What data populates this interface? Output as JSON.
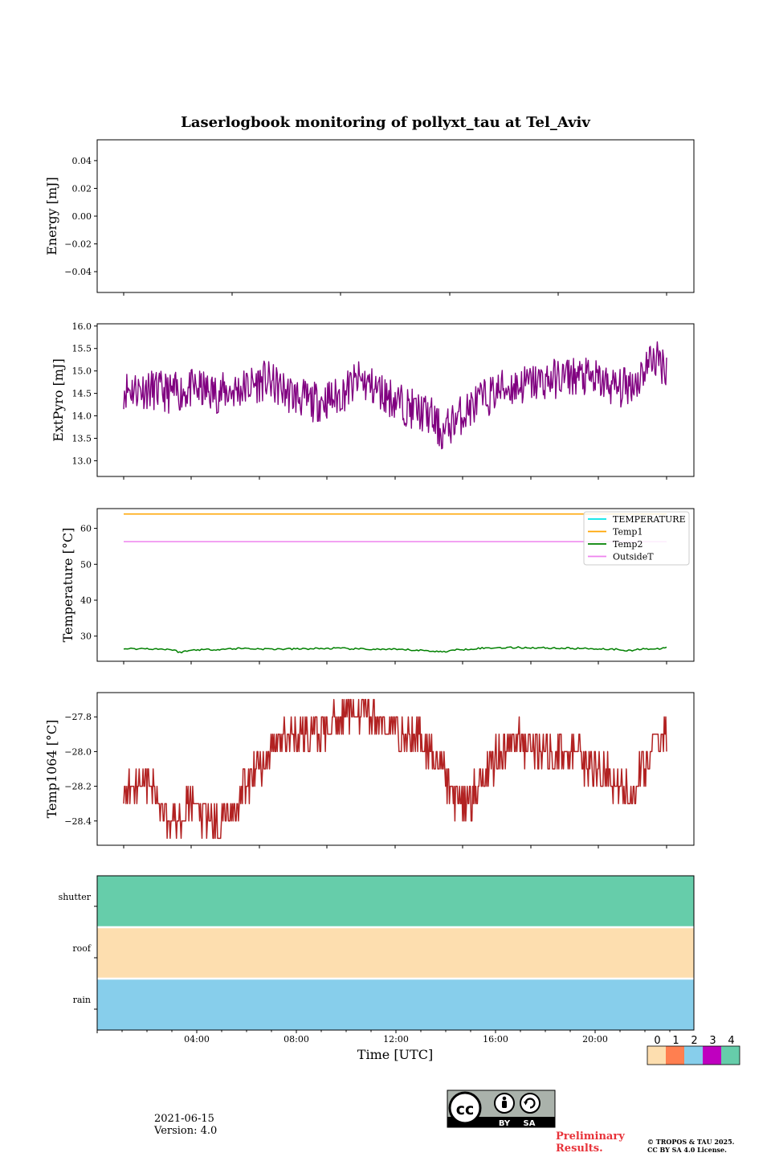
{
  "chart_data": [
    {
      "type": "line",
      "title": "Laserlogbook monitoring of pollyxt_tau at Tel_Aviv",
      "ylabel": "Energy [mJ]",
      "ylim": [
        -0.055,
        0.055
      ],
      "yticks": [
        0.04,
        0.02,
        0.0,
        -0.02,
        -0.04
      ],
      "ytick_labels": [
        "0.04",
        "0.02",
        "0.00",
        "−0.02",
        "−0.04"
      ],
      "series": []
    },
    {
      "type": "line",
      "ylabel": "ExtPyro [mJ]",
      "ylim": [
        12.65,
        16.05
      ],
      "yticks": [
        16.0,
        15.5,
        15.0,
        14.5,
        14.0,
        13.5,
        13.0
      ],
      "ytick_labels": [
        "16.0",
        "15.5",
        "15.0",
        "14.5",
        "14.0",
        "13.5",
        "13.0"
      ],
      "series": [
        {
          "color": "#800080",
          "x_hours": [
            1.0,
            2.0,
            3.0,
            4.0,
            5.0,
            6.0,
            7.0,
            8.0,
            9.0,
            10.0,
            11.0,
            12.0,
            13.0,
            14.0,
            14.5,
            15.0,
            16.0,
            17.0,
            18.0,
            19.0,
            20.0,
            21.0,
            22.0,
            22.8,
            23.0,
            23.4,
            23.7,
            24.0
          ],
          "values": [
            14.6,
            14.6,
            14.5,
            14.6,
            14.5,
            14.6,
            14.8,
            14.5,
            14.3,
            14.4,
            14.8,
            14.5,
            14.2,
            14.0,
            13.6,
            13.9,
            14.3,
            14.6,
            14.7,
            14.8,
            14.9,
            14.8,
            14.6,
            14.8,
            15.0,
            15.3,
            15.2,
            15.1
          ]
        }
      ]
    },
    {
      "type": "line",
      "ylabel": "Temperature [°C]",
      "ylim": [
        23.0,
        65.5
      ],
      "yticks": [
        60,
        50,
        40,
        30
      ],
      "ytick_labels": [
        "60",
        "50",
        "40",
        "30"
      ],
      "legend_position": "upper right",
      "series": [
        {
          "name": "TEMPERATURE",
          "color": "#00e5e5",
          "values": []
        },
        {
          "name": "Temp1",
          "color": "#ffa500",
          "constant": 64.0
        },
        {
          "name": "Temp2",
          "color": "#008000",
          "x_hours": [
            1.0,
            2.0,
            3.0,
            3.4,
            4.0,
            5.0,
            6.0,
            7.0,
            8.0,
            9.0,
            10.0,
            11.0,
            12.0,
            13.0,
            14.0,
            14.5,
            15.0,
            16.0,
            17.0,
            18.0,
            19.0,
            20.0,
            21.0,
            22.0,
            22.5,
            23.0,
            23.5,
            24.0
          ],
          "values": [
            26.5,
            26.5,
            26.3,
            25.5,
            26.2,
            26.3,
            26.6,
            26.4,
            26.4,
            26.5,
            26.6,
            26.4,
            26.3,
            26.2,
            25.9,
            25.6,
            26.1,
            26.6,
            26.8,
            26.8,
            26.7,
            26.6,
            26.5,
            26.3,
            25.9,
            26.6,
            26.2,
            26.9
          ]
        },
        {
          "name": "OutsideT",
          "color": "#ee82ee",
          "constant": 56.3
        }
      ]
    },
    {
      "type": "line",
      "ylabel": "Temp1064 [°C]",
      "ylim": [
        -28.54,
        -27.66
      ],
      "yticks": [
        -27.8,
        -28.0,
        -28.2,
        -28.4
      ],
      "ytick_labels": [
        "−27.8",
        "−28.0",
        "−28.2",
        "−28.4"
      ],
      "series": [
        {
          "color": "#b22222",
          "x_hours": [
            1.0,
            1.5,
            2.0,
            2.5,
            3.0,
            3.5,
            4.0,
            4.5,
            5.0,
            5.5,
            6.0,
            6.5,
            7.0,
            7.5,
            8.0,
            8.5,
            9.0,
            9.5,
            10.0,
            10.5,
            11.0,
            11.5,
            12.0,
            12.5,
            13.0,
            13.5,
            14.0,
            14.5,
            15.0,
            15.5,
            16.0,
            16.5,
            17.0,
            17.5,
            18.0,
            18.5,
            19.0,
            19.5,
            20.0,
            20.5,
            21.0,
            21.5,
            22.0,
            22.5,
            23.0,
            23.5,
            24.0
          ],
          "values": [
            -28.25,
            -28.15,
            -28.15,
            -28.3,
            -28.38,
            -28.35,
            -28.3,
            -28.4,
            -28.42,
            -28.35,
            -28.25,
            -28.12,
            -28.05,
            -27.95,
            -27.92,
            -27.9,
            -27.9,
            -27.88,
            -27.82,
            -27.78,
            -27.75,
            -27.8,
            -27.85,
            -27.88,
            -27.9,
            -27.9,
            -27.98,
            -28.1,
            -28.25,
            -28.3,
            -28.2,
            -28.08,
            -28.0,
            -27.95,
            -27.95,
            -27.98,
            -28.02,
            -28.0,
            -28.02,
            -28.05,
            -28.1,
            -28.15,
            -28.2,
            -28.25,
            -28.1,
            -27.98,
            -27.9
          ]
        }
      ]
    },
    {
      "type": "heatmap",
      "xlabel": "Time [UTC]",
      "xtick_labels": [
        "04:00",
        "08:00",
        "12:00",
        "16:00",
        "20:00"
      ],
      "rows": [
        "shutter",
        "roof",
        "rain"
      ],
      "row_values": [
        4,
        0,
        2
      ],
      "colorbar": {
        "labels": [
          "0",
          "1",
          "2",
          "3",
          "4"
        ],
        "colors": [
          "#fddeaf",
          "#ff7f50",
          "#87ceeb",
          "#bf00bf",
          "#66cdaa"
        ]
      }
    }
  ],
  "footer": {
    "date": "2021-06-15",
    "version": "Version: 4.0",
    "preliminary_line1": "Preliminary",
    "preliminary_line2": "Results.",
    "copyright_line1": "© TROPOS & TAU 2025.",
    "copyright_line2": "CC BY SA 4.0 License.",
    "cc_text": "cc",
    "cc_by": "BY",
    "cc_sa": "SA"
  }
}
